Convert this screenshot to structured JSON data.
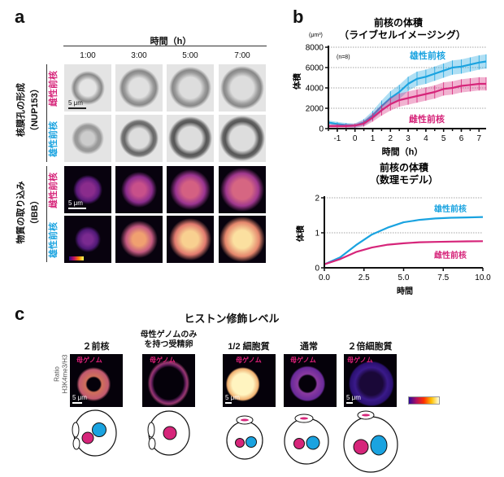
{
  "panel_a": {
    "letter": "a",
    "time_header": "時間（h）",
    "times": [
      "1:00",
      "3:00",
      "5:00",
      "7:00"
    ],
    "group1": {
      "label": "核膜孔の形成",
      "sublabel": "（NUP153）"
    },
    "group2": {
      "label": "物質の取り込み",
      "sublabel": "（IBB）"
    },
    "row_labels": [
      "雌性前核",
      "雄性前核",
      "雌性前核",
      "雄性前核"
    ],
    "scale_bar": "5 μm"
  },
  "panel_b": {
    "letter": "b"
  },
  "panel_c": {
    "letter": "c",
    "title": "ヒストン修飾レベル",
    "y_label_1": "Ratio",
    "y_label_2": "H3K4me3/H3",
    "genome_label": "母ゲノム",
    "scale_bar": "5 μm",
    "columns": [
      {
        "label": "２前核"
      },
      {
        "label": "母性ゲノムのみ",
        "label2": "を持つ受精卵"
      },
      {
        "label": "1/2 細胞質"
      },
      {
        "label": "通常"
      },
      {
        "label": "２倍細胞質"
      }
    ]
  },
  "colors": {
    "male": "#1aa3e0",
    "female": "#d6257a"
  },
  "chart_data": [
    {
      "type": "line",
      "title": "前核の体積",
      "subtitle": "（ライブセルイメージング）",
      "unit": "(μm³)",
      "xlabel": "時間（h）",
      "ylabel": "体積",
      "annotation": "(n=8)",
      "xlim": [
        -1.5,
        7.4
      ],
      "ylim": [
        0,
        8000
      ],
      "xticks": [
        "-1",
        "0",
        "1",
        "2",
        "3",
        "4",
        "5",
        "6",
        "7"
      ],
      "yticks": [
        "0",
        "2000",
        "4000",
        "6000",
        "8000"
      ],
      "grid": "horizontal dotted",
      "x": [
        -1.5,
        -1,
        -0.5,
        0,
        0.5,
        1,
        1.5,
        2,
        2.5,
        3,
        3.5,
        4,
        4.5,
        5,
        5.5,
        6,
        6.5,
        7,
        7.4
      ],
      "series": [
        {
          "name": "雄性前核",
          "color": "#1aa3e0",
          "values": [
            600,
            450,
            350,
            300,
            600,
            1300,
            2200,
            3000,
            3600,
            4400,
            4900,
            5100,
            5400,
            5700,
            6000,
            6100,
            6300,
            6500,
            6600
          ],
          "error": 700
        },
        {
          "name": "雌性前核",
          "color": "#d6257a",
          "values": [
            250,
            250,
            250,
            300,
            500,
            1100,
            1800,
            2400,
            2800,
            3000,
            3200,
            3400,
            3600,
            3900,
            4000,
            4200,
            4300,
            4400,
            4400
          ],
          "error": 650
        }
      ]
    },
    {
      "type": "line",
      "title": "前核の体積",
      "subtitle": "（数理モデル）",
      "xlabel": "時間",
      "ylabel": "体積",
      "xlim": [
        0,
        10
      ],
      "ylim": [
        0,
        2
      ],
      "xticks": [
        "0.0",
        "2.5",
        "5.0",
        "7.5",
        "10.0"
      ],
      "yticks": [
        "0",
        "1",
        "2"
      ],
      "grid": "horizontal dotted",
      "x": [
        0,
        1,
        2,
        3,
        4,
        5,
        6,
        7,
        8,
        9,
        10
      ],
      "series": [
        {
          "name": "雄性前核",
          "color": "#1aa3e0",
          "values": [
            0.1,
            0.3,
            0.65,
            0.95,
            1.15,
            1.3,
            1.37,
            1.41,
            1.43,
            1.44,
            1.45
          ]
        },
        {
          "name": "雌性前核",
          "color": "#d6257a",
          "values": [
            0.1,
            0.25,
            0.45,
            0.58,
            0.66,
            0.7,
            0.73,
            0.74,
            0.75,
            0.755,
            0.76
          ]
        }
      ]
    }
  ]
}
